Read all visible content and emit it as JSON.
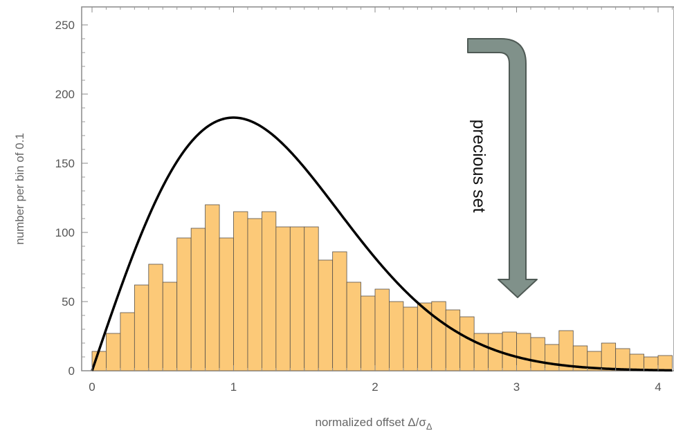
{
  "chart_data": {
    "type": "bar",
    "title": "",
    "xlabel": "normalized offset Δ/σ",
    "xlabel_subscript": "Δ",
    "ylabel": "number per bin of 0.1",
    "xlim": [
      0,
      4.1
    ],
    "ylim": [
      0,
      260
    ],
    "xticks": [
      0,
      1,
      2,
      3,
      4
    ],
    "yticks": [
      0,
      50,
      100,
      150,
      200,
      250
    ],
    "bin_width": 0.1,
    "bins": {
      "x_start": [
        0.0,
        0.1,
        0.2,
        0.3,
        0.4,
        0.5,
        0.6,
        0.7,
        0.8,
        0.9,
        1.0,
        1.1,
        1.2,
        1.3,
        1.4,
        1.5,
        1.6,
        1.7,
        1.8,
        1.9,
        2.0,
        2.1,
        2.2,
        2.3,
        2.4,
        2.5,
        2.6,
        2.7,
        2.8,
        2.9,
        3.0,
        3.1,
        3.2,
        3.3,
        3.4,
        3.5,
        3.6,
        3.7,
        3.8,
        3.9,
        4.0
      ],
      "values": [
        14,
        27,
        42,
        62,
        77,
        64,
        96,
        103,
        120,
        96,
        115,
        110,
        115,
        104,
        104,
        104,
        80,
        86,
        64,
        54,
        59,
        50,
        46,
        49,
        50,
        44,
        39,
        27,
        27,
        28,
        27,
        24,
        19,
        29,
        18,
        14,
        20,
        16,
        12,
        10,
        11
      ]
    },
    "curve": {
      "description": "Rayleigh distribution overlay",
      "peak_x": 1.0,
      "peak_y": 183,
      "color": "#000000"
    },
    "bar_color": "#fcc978",
    "bar_edge_color": "#55504a",
    "grid": false,
    "legend": "none",
    "annotation": {
      "text": "precious set",
      "arrow_color": "#80918a",
      "arrow_edge_color": "#4f5a55"
    }
  }
}
